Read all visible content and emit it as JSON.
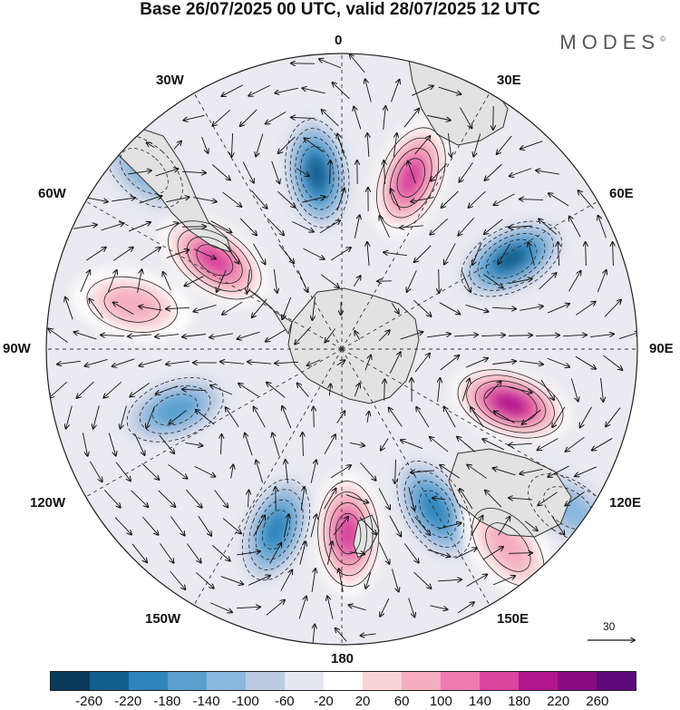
{
  "title": "Base 26/07/2025 00 UTC, valid 28/07/2025 12 UTC",
  "brand": "MODES",
  "brand_mark": "©",
  "longitude_labels": {
    "lon_0": "0",
    "lon_30e": "30E",
    "lon_60e": "60E",
    "lon_90e": "90E",
    "lon_120e": "120E",
    "lon_150e": "150E",
    "lon_180": "180",
    "lon_150w": "150W",
    "lon_120w": "120W",
    "lon_90w": "90W",
    "lon_60w": "60W",
    "lon_30w": "30W"
  },
  "reference_vector": "30",
  "colorbar": {
    "colors": [
      "#0b3b5c",
      "#14608d",
      "#2e86bd",
      "#5aa1cf",
      "#8ab8de",
      "#bccbe1",
      "#e4e6f1",
      "#ffffff",
      "#f9d4d6",
      "#f4aebe",
      "#ec7cb0",
      "#d9449f",
      "#b3178f",
      "#8a0c85",
      "#5e0a7a"
    ],
    "ticks": [
      "-260",
      "-220",
      "-180",
      "-140",
      "-100",
      "-60",
      "-20",
      "20",
      "60",
      "100",
      "140",
      "180",
      "220",
      "260"
    ]
  },
  "anomaly_centers": [
    {
      "name": "negative-center-1",
      "lon": -8,
      "lat": -42,
      "value": -220
    },
    {
      "name": "positive-center-1",
      "lon": 22,
      "lat": -40,
      "value": 180
    },
    {
      "name": "negative-center-2",
      "lon": 62,
      "lat": -38,
      "value": -220
    },
    {
      "name": "positive-center-2",
      "lon": 108,
      "lat": -42,
      "value": 200
    },
    {
      "name": "negative-center-3",
      "lon": 150,
      "lat": -40,
      "value": -160
    },
    {
      "name": "positive-center-3",
      "lon": 178,
      "lat": -40,
      "value": 180
    },
    {
      "name": "negative-center-4",
      "lon": -160,
      "lat": -38,
      "value": -160
    },
    {
      "name": "negative-center-5",
      "lon": -110,
      "lat": -42,
      "value": -140
    },
    {
      "name": "positive-center-4",
      "lon": -55,
      "lat": -48,
      "value": 160
    },
    {
      "name": "positive-center-5",
      "lon": -78,
      "lat": -32,
      "value": 100
    },
    {
      "name": "negative-center-6",
      "lon": -48,
      "lat": -18,
      "value": -80
    },
    {
      "name": "negative-center-7",
      "lon": 125,
      "lat": -15,
      "value": -100
    },
    {
      "name": "positive-center-6",
      "lon": 140,
      "lat": -20,
      "value": 80
    }
  ]
}
